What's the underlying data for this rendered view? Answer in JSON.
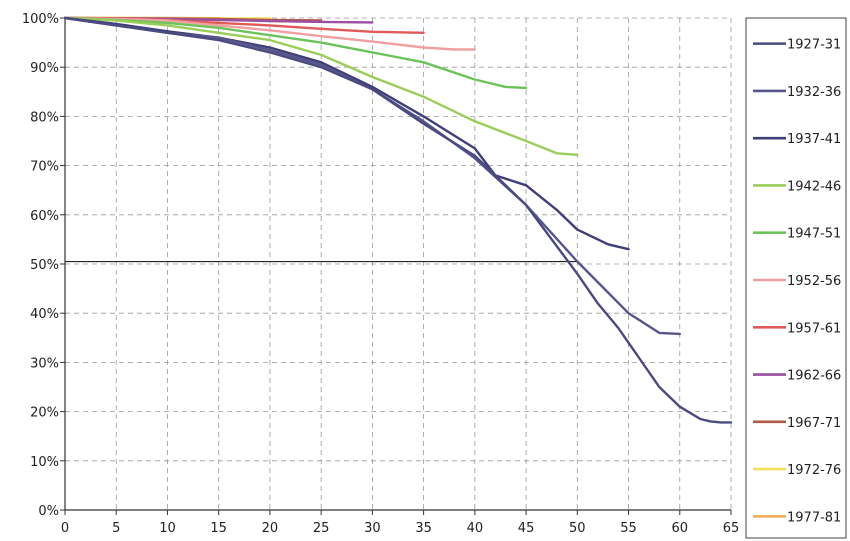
{
  "chart_data": {
    "type": "line",
    "title": "",
    "xlabel": "",
    "ylabel": "",
    "xlim": [
      0,
      65
    ],
    "ylim": [
      0,
      100
    ],
    "x_ticks": [
      "0",
      "5",
      "10",
      "15",
      "20",
      "25",
      "30",
      "35",
      "40",
      "45",
      "50",
      "55",
      "60",
      "65"
    ],
    "y_ticks": [
      "0%",
      "10%",
      "20%",
      "30%",
      "40%",
      "50%",
      "60%",
      "70%",
      "80%",
      "90%",
      "100%"
    ],
    "grid": "dashed",
    "legend_position": "right",
    "reference_line": 50.5,
    "series": [
      {
        "name": "1927-31",
        "color": "#4a4a80",
        "x": [
          0,
          5,
          10,
          15,
          20,
          25,
          30,
          35,
          40,
          45,
          50,
          52,
          54,
          56,
          58,
          60,
          62,
          63,
          64,
          65
        ],
        "y": [
          100,
          98.5,
          97,
          95.5,
          93,
          90,
          85.5,
          78.5,
          72,
          62,
          48,
          42,
          37,
          31,
          25,
          21,
          18.5,
          18,
          17.8,
          17.8
        ]
      },
      {
        "name": "1932-36",
        "color": "#55558a",
        "x": [
          0,
          5,
          10,
          15,
          20,
          25,
          30,
          35,
          40,
          45,
          50,
          55,
          58,
          60
        ],
        "y": [
          100,
          98.5,
          97,
          96,
          93.5,
          90.5,
          85.5,
          79,
          71.5,
          62,
          50.5,
          40,
          36,
          35.8
        ]
      },
      {
        "name": "1937-41",
        "color": "#3f3f78",
        "x": [
          0,
          5,
          10,
          15,
          20,
          25,
          30,
          35,
          40,
          42,
          45,
          48,
          50,
          53,
          55
        ],
        "y": [
          100,
          98.8,
          97.3,
          96,
          94,
          91,
          86,
          80,
          73.5,
          68,
          66,
          61,
          57,
          54,
          53
        ]
      },
      {
        "name": "1942-46",
        "color": "#9acd5a",
        "x": [
          0,
          5,
          10,
          15,
          20,
          25,
          30,
          35,
          40,
          45,
          48,
          50
        ],
        "y": [
          100,
          99.5,
          98.5,
          97,
          95.5,
          92.5,
          88,
          84,
          79,
          75,
          72.5,
          72.2
        ]
      },
      {
        "name": "1947-51",
        "color": "#6cc35a",
        "x": [
          0,
          5,
          10,
          15,
          20,
          25,
          30,
          35,
          40,
          43,
          45
        ],
        "y": [
          100,
          99.6,
          99,
          98,
          96.5,
          95,
          93,
          91,
          87.5,
          86,
          85.8
        ]
      },
      {
        "name": "1952-56",
        "color": "#f0a0a0",
        "x": [
          0,
          5,
          10,
          15,
          20,
          25,
          30,
          35,
          38,
          40
        ],
        "y": [
          100,
          99.8,
          99.5,
          98.5,
          97.5,
          96.3,
          95.2,
          94,
          93.6,
          93.6
        ]
      },
      {
        "name": "1957-61",
        "color": "#e05a5a",
        "x": [
          0,
          5,
          10,
          15,
          20,
          25,
          30,
          35
        ],
        "y": [
          100,
          99.9,
          99.6,
          99,
          98.5,
          97.8,
          97.2,
          97
        ]
      },
      {
        "name": "1962-66",
        "color": "#9a4fa0",
        "x": [
          0,
          5,
          10,
          15,
          20,
          25,
          30
        ],
        "y": [
          100,
          99.9,
          99.8,
          99.6,
          99.4,
          99.2,
          99.1
        ]
      },
      {
        "name": "1967-71",
        "color": "#b05a4a",
        "x": [
          0,
          5,
          10,
          15,
          20,
          25
        ],
        "y": [
          100,
          99.95,
          99.9,
          99.8,
          99.6,
          99.5
        ]
      },
      {
        "name": "1972-76",
        "color": "#f2df5a",
        "x": [
          0,
          5,
          10,
          15,
          20
        ],
        "y": [
          100,
          100,
          99.95,
          99.9,
          99.9
        ]
      },
      {
        "name": "1977-81",
        "color": "#f0a850",
        "x": [
          0,
          5,
          10,
          15
        ],
        "y": [
          100,
          100,
          100,
          99.95
        ]
      }
    ]
  }
}
